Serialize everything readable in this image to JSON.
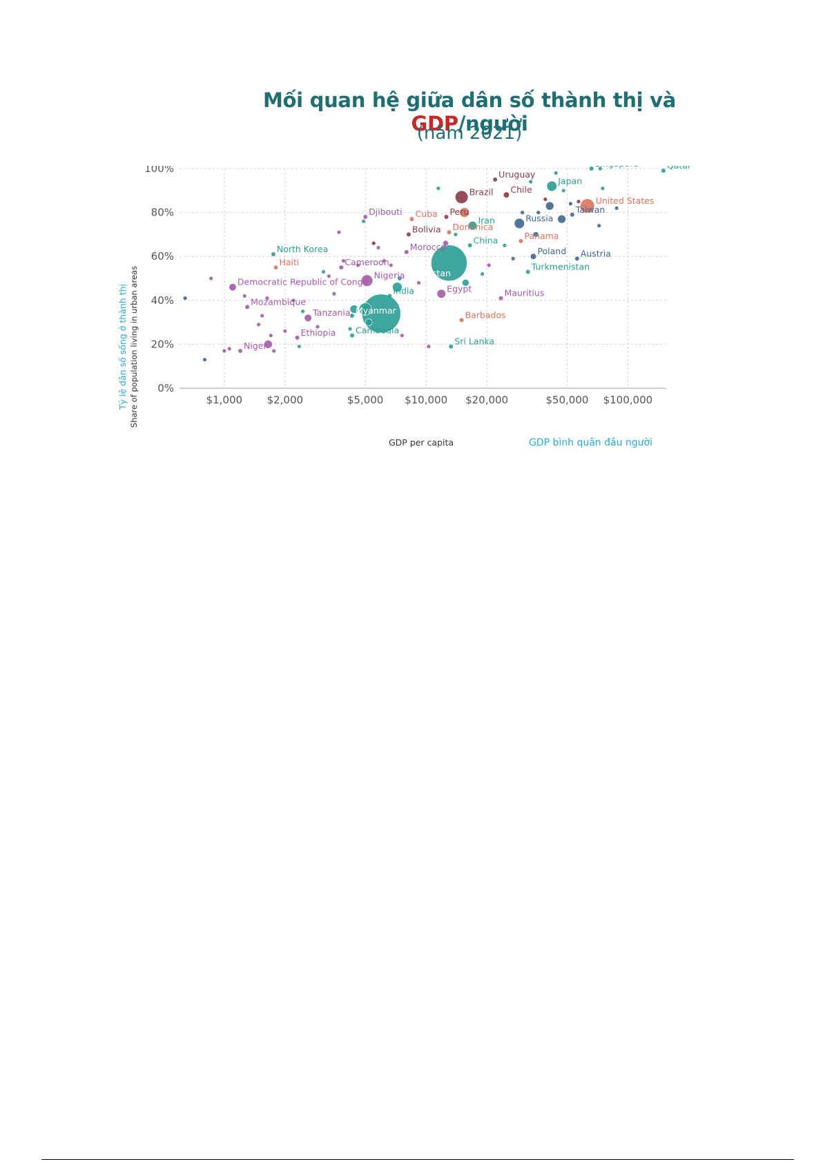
{
  "title": {
    "main": "Mối quan hệ giữa dân số thành thị và ",
    "highlight": "GDP",
    "suffix": "/người"
  },
  "subtitle": "(năm 2021)",
  "chart_data": {
    "type": "scatter",
    "title": "Mối quan hệ giữa dân số thành thị và GDP/người (năm 2021)",
    "xlabel": "GDP per capita",
    "xlabel_vi": "GDP bình quân đầu người",
    "ylabel": "Share of population living in urban areas",
    "ylabel_vi": "Tỷ lệ dân số sống ở thành thị",
    "x_scale": "log",
    "xlim": [
      600,
      155000
    ],
    "ylim": [
      0,
      100
    ],
    "x_ticks": [
      1000,
      2000,
      5000,
      10000,
      20000,
      50000,
      100000
    ],
    "x_tick_labels": [
      "$1,000",
      "$2,000",
      "$5,000",
      "$10,000",
      "$20,000",
      "$50,000",
      "$100,000"
    ],
    "y_ticks": [
      0,
      20,
      40,
      60,
      80,
      100
    ],
    "y_tick_labels": [
      "0%",
      "20%",
      "40%",
      "60%",
      "80%",
      "100%"
    ],
    "grid": true,
    "colors": {
      "teal": "#2a9d95",
      "purple": "#a35aa8",
      "brown": "#8a3a45",
      "salmon": "#d9735f",
      "slate": "#3f6690"
    },
    "points": [
      {
        "label": "Qatar",
        "x": 150000,
        "y": 99,
        "color": "teal",
        "r": 3
      },
      {
        "label": "Singapore",
        "x": 66000,
        "y": 100,
        "color": "teal",
        "r": 3
      },
      {
        "label": "Uruguay",
        "x": 22000,
        "y": 95,
        "color": "brown",
        "r": 3
      },
      {
        "label": "Japan",
        "x": 42000,
        "y": 92,
        "color": "teal",
        "r": 7
      },
      {
        "label": "Brazil",
        "x": 15000,
        "y": 87,
        "color": "brown",
        "r": 9
      },
      {
        "label": "Chile",
        "x": 25000,
        "y": 88,
        "color": "brown",
        "r": 4
      },
      {
        "label": "United States",
        "x": 63000,
        "y": 83,
        "color": "salmon",
        "r": 10
      },
      {
        "label": "Taiwan",
        "x": 53000,
        "y": 79,
        "color": "slate",
        "r": 3
      },
      {
        "label": "Djibouti",
        "x": 5000,
        "y": 78,
        "color": "purple",
        "r": 3
      },
      {
        "label": "Cuba",
        "x": 8500,
        "y": 77,
        "color": "salmon",
        "r": 3
      },
      {
        "label": "Peru",
        "x": 12600,
        "y": 78,
        "color": "brown",
        "r": 3
      },
      {
        "label": "Iran",
        "x": 17000,
        "y": 74,
        "color": "teal",
        "r": 6
      },
      {
        "label": "Russia",
        "x": 29000,
        "y": 75,
        "color": "slate",
        "r": 7
      },
      {
        "label": "Bolivia",
        "x": 8200,
        "y": 70,
        "color": "brown",
        "r": 3
      },
      {
        "label": "Dominica",
        "x": 13000,
        "y": 71,
        "color": "salmon",
        "r": 3
      },
      {
        "label": "Panama",
        "x": 29500,
        "y": 67,
        "color": "salmon",
        "r": 3
      },
      {
        "label": "North Korea",
        "x": 1750,
        "y": 61,
        "color": "teal",
        "r": 3
      },
      {
        "label": "Morocco",
        "x": 8000,
        "y": 62,
        "color": "purple",
        "r": 3
      },
      {
        "label": "China",
        "x": 16500,
        "y": 65,
        "color": "teal",
        "r": 3
      },
      {
        "label": "Poland",
        "x": 34000,
        "y": 60,
        "color": "slate",
        "r": 4
      },
      {
        "label": "Austria",
        "x": 56000,
        "y": 59,
        "color": "slate",
        "r": 3
      },
      {
        "label": "Haiti",
        "x": 1800,
        "y": 55,
        "color": "salmon",
        "r": 3
      },
      {
        "label": "Cameroon",
        "x": 3800,
        "y": 55,
        "color": "purple",
        "r": 3
      },
      {
        "label": "Nigeria",
        "x": 5100,
        "y": 49,
        "color": "purple",
        "r": 8
      },
      {
        "label": "Uzbekistan",
        "x": 7400,
        "y": 50,
        "color": "teal",
        "r": 3
      },
      {
        "label": "Turkmenistan",
        "x": 32000,
        "y": 53,
        "color": "teal",
        "r": 3
      },
      {
        "label": "Democratic Republic of Congo",
        "x": 1100,
        "y": 46,
        "color": "purple",
        "r": 5
      },
      {
        "label": "Egypt",
        "x": 11900,
        "y": 43,
        "color": "purple",
        "r": 6
      },
      {
        "label": "Mauritius",
        "x": 23500,
        "y": 41,
        "color": "purple",
        "r": 3
      },
      {
        "label": "India",
        "x": 6600,
        "y": 42,
        "color": "teal",
        "r": 3
      },
      {
        "label": "Mozambique",
        "x": 1300,
        "y": 37,
        "color": "purple",
        "r": 3
      },
      {
        "label": "Tanzania",
        "x": 2600,
        "y": 32,
        "color": "purple",
        "r": 5
      },
      {
        "label": "Myanmar",
        "x": 4300,
        "y": 33,
        "color": "teal",
        "r": 3
      },
      {
        "label": "Barbados",
        "x": 15000,
        "y": 31,
        "color": "salmon",
        "r": 3
      },
      {
        "label": "Ethiopia",
        "x": 2300,
        "y": 23,
        "color": "purple",
        "r": 3
      },
      {
        "label": "Cambodia",
        "x": 4300,
        "y": 24,
        "color": "teal",
        "r": 3
      },
      {
        "label": "Sri Lanka",
        "x": 13300,
        "y": 19,
        "color": "teal",
        "r": 3
      },
      {
        "label": "Niger",
        "x": 1200,
        "y": 17,
        "color": "purple",
        "r": 3
      }
    ],
    "bubbles": [
      {
        "x": 6000,
        "y": 34,
        "color": "teal",
        "r": 28
      },
      {
        "x": 13000,
        "y": 57,
        "color": "teal",
        "r": 26
      },
      {
        "x": 5000,
        "y": 36,
        "color": "teal",
        "r": 9
      },
      {
        "x": 7200,
        "y": 46,
        "color": "teal",
        "r": 7
      },
      {
        "x": 1650,
        "y": 20,
        "color": "purple",
        "r": 6
      },
      {
        "x": 15500,
        "y": 80,
        "color": "salmon",
        "r": 7
      },
      {
        "x": 15700,
        "y": 48,
        "color": "teal",
        "r": 5
      },
      {
        "x": 41000,
        "y": 83,
        "color": "slate",
        "r": 6
      },
      {
        "x": 47000,
        "y": 77,
        "color": "slate",
        "r": 6
      },
      {
        "x": 35000,
        "y": 70,
        "color": "slate",
        "r": 4
      },
      {
        "x": 12500,
        "y": 66,
        "color": "purple",
        "r": 4
      },
      {
        "x": 4400,
        "y": 36,
        "color": "teal",
        "r": 6
      },
      {
        "x": 5200,
        "y": 30,
        "color": "teal",
        "r": 5
      }
    ],
    "extra": [
      {
        "x": 640,
        "y": 41,
        "color": "slate"
      },
      {
        "x": 800,
        "y": 13,
        "color": "slate"
      },
      {
        "x": 860,
        "y": 50,
        "color": "purple"
      },
      {
        "x": 1000,
        "y": 17,
        "color": "purple"
      },
      {
        "x": 1060,
        "y": 18,
        "color": "purple"
      },
      {
        "x": 1260,
        "y": 42,
        "color": "purple"
      },
      {
        "x": 1480,
        "y": 29,
        "color": "purple"
      },
      {
        "x": 1540,
        "y": 33,
        "color": "purple"
      },
      {
        "x": 1630,
        "y": 41,
        "color": "purple"
      },
      {
        "x": 1700,
        "y": 24,
        "color": "purple"
      },
      {
        "x": 1760,
        "y": 17,
        "color": "purple"
      },
      {
        "x": 2000,
        "y": 26,
        "color": "purple"
      },
      {
        "x": 2200,
        "y": 40,
        "color": "purple"
      },
      {
        "x": 2350,
        "y": 19,
        "color": "teal"
      },
      {
        "x": 2450,
        "y": 35,
        "color": "teal"
      },
      {
        "x": 2900,
        "y": 28,
        "color": "purple"
      },
      {
        "x": 3100,
        "y": 53,
        "color": "teal"
      },
      {
        "x": 3300,
        "y": 51,
        "color": "purple"
      },
      {
        "x": 3500,
        "y": 43,
        "color": "purple"
      },
      {
        "x": 3700,
        "y": 71,
        "color": "purple"
      },
      {
        "x": 3900,
        "y": 58,
        "color": "purple"
      },
      {
        "x": 4200,
        "y": 27,
        "color": "teal"
      },
      {
        "x": 4600,
        "y": 56,
        "color": "purple"
      },
      {
        "x": 4900,
        "y": 76,
        "color": "teal"
      },
      {
        "x": 5500,
        "y": 66,
        "color": "brown"
      },
      {
        "x": 5800,
        "y": 64,
        "color": "purple"
      },
      {
        "x": 6200,
        "y": 58,
        "color": "purple"
      },
      {
        "x": 6700,
        "y": 56,
        "color": "purple"
      },
      {
        "x": 7600,
        "y": 24,
        "color": "purple"
      },
      {
        "x": 9200,
        "y": 48,
        "color": "purple"
      },
      {
        "x": 10300,
        "y": 19,
        "color": "purple"
      },
      {
        "x": 11500,
        "y": 91,
        "color": "teal"
      },
      {
        "x": 14000,
        "y": 70,
        "color": "teal"
      },
      {
        "x": 19000,
        "y": 52,
        "color": "teal"
      },
      {
        "x": 20500,
        "y": 56,
        "color": "purple"
      },
      {
        "x": 24500,
        "y": 65,
        "color": "teal"
      },
      {
        "x": 27000,
        "y": 59,
        "color": "slate"
      },
      {
        "x": 30000,
        "y": 80,
        "color": "slate"
      },
      {
        "x": 33000,
        "y": 94,
        "color": "teal"
      },
      {
        "x": 36000,
        "y": 80,
        "color": "slate"
      },
      {
        "x": 39000,
        "y": 86,
        "color": "brown"
      },
      {
        "x": 44000,
        "y": 98,
        "color": "teal"
      },
      {
        "x": 48000,
        "y": 90,
        "color": "teal"
      },
      {
        "x": 52000,
        "y": 84,
        "color": "slate"
      },
      {
        "x": 57000,
        "y": 85,
        "color": "brown"
      },
      {
        "x": 72000,
        "y": 74,
        "color": "slate"
      },
      {
        "x": 75000,
        "y": 91,
        "color": "teal"
      },
      {
        "x": 88000,
        "y": 82,
        "color": "slate"
      },
      {
        "x": 73000,
        "y": 100,
        "color": "teal"
      }
    ]
  }
}
